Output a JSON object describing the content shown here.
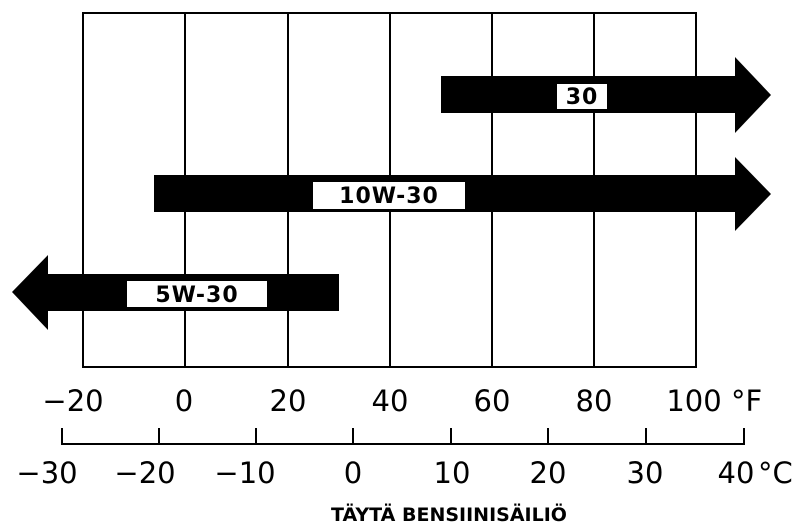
{
  "chart": {
    "fahrenheit_ticks": [
      "−20",
      "0",
      "20",
      "40",
      "60",
      "80",
      "100"
    ],
    "fahrenheit_unit": "°F",
    "celsius_ticks": [
      "−30",
      "−20",
      "−10",
      "0",
      "10",
      "20",
      "30",
      "40"
    ],
    "celsius_unit": "°C",
    "grades": [
      {
        "label": "30",
        "from_f": 50,
        "to_f": 100,
        "open_end": "right"
      },
      {
        "label": "10W-30",
        "from_f": -7,
        "to_f": 100,
        "open_end": "right"
      },
      {
        "label": "5W-30",
        "from_f": -20,
        "to_f": 30,
        "open_end": "left"
      }
    ]
  },
  "caption": "TÄYTÄ BENSIINISÄILIÖ",
  "colors": {
    "ink": "#000000",
    "paper": "#ffffff"
  }
}
